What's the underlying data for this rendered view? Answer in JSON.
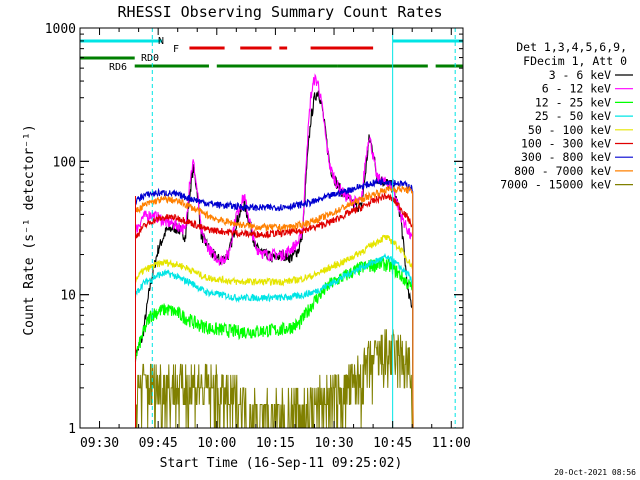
{
  "chart_data": {
    "type": "line",
    "title": "RHESSI Observing Summary Count Rates",
    "xlabel": "Start Time (16-Sep-11 09:25:02)",
    "ylabel": "Count Rate (s⁻¹ detector⁻¹)",
    "y_scale": "log",
    "ylim": [
      1,
      1000
    ],
    "xlim_minutes_after_0925": [
      0,
      98
    ],
    "x_tick_labels": [
      "09:30",
      "09:45",
      "10:00",
      "10:15",
      "10:30",
      "10:45",
      "11:00"
    ],
    "x_tick_minutes": [
      5,
      20,
      35,
      50,
      65,
      80,
      95
    ],
    "y_tick_labels": [
      "1",
      "10",
      "100",
      "1000"
    ],
    "y_tick_values": [
      1,
      10,
      100,
      1000
    ],
    "legend_header": [
      "Det 1,3,4,5,6,9,",
      "FDecim 1, Att 0"
    ],
    "legend_position": "right",
    "footer_date": "20-Oct-2021 08:56",
    "flags": [
      {
        "label": "N",
        "color": "#00e5e5",
        "segments": [
          [
            0,
            21
          ],
          [
            80,
            98
          ]
        ]
      },
      {
        "label": "F",
        "color": "#e00000",
        "segments": [
          [
            28,
            37
          ],
          [
            41,
            49
          ],
          [
            51,
            53
          ],
          [
            59,
            75
          ]
        ]
      },
      {
        "label": "RD0",
        "color": "#007f00",
        "segments": [
          [
            0,
            14
          ]
        ]
      },
      {
        "label": "RD6",
        "color": "#007f00",
        "segments": [
          [
            14,
            33
          ],
          [
            35,
            66
          ],
          [
            66,
            89
          ],
          [
            91,
            98
          ]
        ]
      }
    ],
    "vlines": [
      {
        "color": "#00e5e5",
        "style": "dashed",
        "x": 18.5
      },
      {
        "color": "#00e5e5",
        "style": "solid",
        "x": 80
      },
      {
        "color": "#00e5e5",
        "style": "dashed",
        "x": 96
      }
    ],
    "data_start": 14.2,
    "data_end": 85.2,
    "series": [
      {
        "name": "3 - 6 keV",
        "color": "#000000",
        "x": [
          14.2,
          15,
          16,
          18,
          20,
          22,
          24,
          26,
          27,
          28,
          29,
          30,
          31,
          32,
          34,
          36,
          38,
          40,
          42,
          44,
          45,
          46,
          47,
          48,
          49,
          50,
          52,
          54,
          56,
          57,
          58,
          59,
          60,
          61,
          62,
          63,
          64,
          66,
          68,
          70,
          72,
          73,
          74,
          75,
          76,
          78,
          80,
          82,
          84,
          85.2
        ],
        "y": [
          3.5,
          4.0,
          4.8,
          12,
          22,
          30,
          32,
          30,
          27,
          55,
          90,
          60,
          28,
          25,
          20,
          18,
          20,
          35,
          48,
          30,
          22,
          22,
          20,
          20,
          19,
          19,
          20,
          19,
          22,
          30,
          90,
          200,
          300,
          340,
          250,
          150,
          90,
          65,
          55,
          48,
          45,
          80,
          150,
          120,
          75,
          70,
          65,
          40,
          10,
          8
        ]
      },
      {
        "name": "6 - 12 keV",
        "color": "#ff00ff",
        "x": [
          14.2,
          16,
          18,
          20,
          22,
          24,
          26,
          27,
          28,
          29,
          30,
          31,
          32,
          34,
          36,
          38,
          40,
          42,
          44,
          45,
          46,
          47,
          48,
          50,
          52,
          54,
          56,
          57,
          58,
          59,
          60,
          61,
          62,
          63,
          64,
          66,
          68,
          70,
          72,
          73,
          74,
          75,
          76,
          78,
          80,
          82,
          84,
          85.2
        ],
        "y": [
          30,
          38,
          40,
          38,
          35,
          34,
          32,
          30,
          70,
          100,
          60,
          30,
          25,
          20,
          18,
          20,
          40,
          55,
          30,
          22,
          22,
          20,
          20,
          20,
          20,
          22,
          25,
          32,
          120,
          300,
          420,
          380,
          250,
          140,
          90,
          65,
          55,
          50,
          50,
          100,
          160,
          110,
          75,
          70,
          65,
          40,
          30,
          25
        ]
      },
      {
        "name": "12 - 25 keV",
        "color": "#00ff00",
        "x": [
          14.2,
          16,
          18,
          20,
          22,
          24,
          26,
          28,
          30,
          32,
          34,
          36,
          40,
          44,
          48,
          52,
          56,
          60,
          64,
          68,
          72,
          76,
          78,
          80,
          82,
          84,
          85.2
        ],
        "y": [
          3.5,
          5.0,
          7.0,
          7.5,
          7.8,
          7.5,
          7.0,
          6.5,
          6.0,
          5.8,
          5.5,
          5.5,
          5.3,
          5.3,
          5.4,
          5.5,
          6.0,
          9,
          12,
          14,
          16,
          17,
          17,
          16,
          14,
          12,
          11
        ]
      },
      {
        "name": "25 - 50 keV",
        "color": "#00e5e5",
        "x": [
          14.2,
          16,
          18,
          20,
          22,
          24,
          26,
          28,
          30,
          32,
          36,
          40,
          44,
          48,
          52,
          56,
          60,
          64,
          68,
          72,
          76,
          78,
          80,
          82,
          84,
          85.2
        ],
        "y": [
          10,
          12,
          13,
          14,
          14.5,
          14,
          13,
          12.5,
          11.5,
          10.5,
          10,
          9.5,
          9.5,
          9.5,
          9.5,
          9.8,
          10.5,
          12,
          14,
          16,
          18,
          19,
          18,
          16,
          14,
          12
        ]
      },
      {
        "name": "50 - 100 keV",
        "color": "#e5e500",
        "x": [
          14.2,
          16,
          18,
          20,
          22,
          24,
          26,
          28,
          30,
          32,
          36,
          40,
          44,
          48,
          52,
          56,
          60,
          64,
          68,
          72,
          76,
          78,
          80,
          82,
          84,
          85.2
        ],
        "y": [
          13,
          15,
          16,
          17,
          17.5,
          17,
          16.5,
          15.5,
          14.5,
          13.5,
          13,
          12.5,
          12.5,
          12.5,
          12.5,
          13,
          14,
          16,
          18,
          21,
          25,
          27,
          25,
          22,
          18,
          16
        ]
      },
      {
        "name": "100 - 300 keV",
        "color": "#e00000",
        "x": [
          14.2,
          16,
          18,
          20,
          22,
          24,
          26,
          28,
          30,
          32,
          36,
          40,
          44,
          48,
          52,
          56,
          60,
          64,
          68,
          72,
          76,
          78,
          80,
          82,
          84,
          85.2
        ],
        "y": [
          27,
          32,
          35,
          37,
          38,
          38,
          37,
          35,
          33,
          31,
          30,
          29,
          28.5,
          28.5,
          29,
          30,
          32,
          35,
          40,
          45,
          52,
          55,
          52,
          45,
          37,
          32
        ]
      },
      {
        "name": "300 - 800 keV",
        "color": "#0000d0",
        "x": [
          14.2,
          16,
          18,
          20,
          22,
          24,
          26,
          28,
          30,
          32,
          36,
          40,
          44,
          48,
          52,
          56,
          60,
          64,
          68,
          72,
          76,
          78,
          80,
          82,
          84,
          85.2
        ],
        "y": [
          50,
          55,
          57,
          58,
          58,
          57,
          55,
          53,
          51,
          49,
          47,
          46,
          45,
          45,
          45.5,
          47,
          50,
          55,
          60,
          65,
          70,
          71,
          70,
          68,
          66,
          62
        ]
      },
      {
        "name": "800 - 7000 keV",
        "color": "#ff8000",
        "x": [
          14.2,
          16,
          18,
          20,
          22,
          24,
          26,
          28,
          30,
          32,
          36,
          40,
          44,
          48,
          52,
          56,
          60,
          64,
          68,
          72,
          76,
          78,
          80,
          82,
          84,
          85.2
        ],
        "y": [
          42,
          46,
          49,
          51,
          52,
          51,
          49,
          46,
          43,
          40,
          36,
          34,
          32.5,
          32,
          32,
          33,
          36,
          40,
          46,
          52,
          58,
          61,
          62,
          62,
          61,
          58
        ]
      },
      {
        "name": "7000 - 15000 keV",
        "color": "#808000",
        "x": [
          14.2,
          15,
          20,
          30,
          40,
          45,
          50,
          55,
          58,
          60,
          62,
          65,
          68,
          70,
          72,
          74,
          76,
          78,
          80,
          82,
          84,
          85.2
        ],
        "y": [
          1.5,
          2.0,
          2.0,
          2.0,
          1.5,
          1.2,
          1.1,
          1.2,
          1.3,
          1.4,
          1.5,
          1.6,
          1.8,
          2.0,
          2.3,
          2.8,
          3.2,
          3.4,
          3.4,
          3.2,
          3.0,
          1.5
        ]
      }
    ]
  }
}
